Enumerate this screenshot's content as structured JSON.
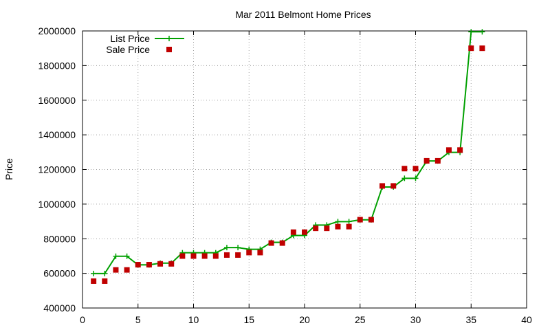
{
  "chart_data": {
    "type": "line",
    "title": "Mar 2011 Belmont Home Prices",
    "xlabel": "",
    "ylabel": "Price",
    "xlim": [
      0,
      40
    ],
    "ylim": [
      400000,
      2000000
    ],
    "x_ticks": [
      0,
      5,
      10,
      15,
      20,
      25,
      30,
      35,
      40
    ],
    "y_ticks": [
      400000,
      600000,
      800000,
      1000000,
      1200000,
      1400000,
      1600000,
      1800000,
      2000000
    ],
    "grid": true,
    "legend_position": "top-left",
    "series": [
      {
        "name": "List Price",
        "style": "line-with-plus-markers",
        "color": "#00a000",
        "x": [
          1,
          2,
          3,
          4,
          5,
          6,
          7,
          8,
          9,
          10,
          11,
          12,
          13,
          14,
          15,
          16,
          17,
          18,
          19,
          20,
          21,
          22,
          23,
          24,
          25,
          26,
          27,
          28,
          29,
          30,
          31,
          32,
          33,
          34,
          35,
          36
        ],
        "values": [
          599000,
          599000,
          699000,
          699000,
          649000,
          649000,
          659000,
          659000,
          719000,
          719000,
          719000,
          719000,
          749000,
          749000,
          739000,
          739000,
          779000,
          779000,
          819000,
          819000,
          879000,
          879000,
          899000,
          899000,
          909000,
          909000,
          1099000,
          1099000,
          1149000,
          1149000,
          1249000,
          1249000,
          1299000,
          1299000,
          1995000,
          1995000
        ]
      },
      {
        "name": "Sale Price",
        "style": "square-markers",
        "color": "#c00000",
        "x": [
          1,
          2,
          3,
          4,
          5,
          6,
          7,
          8,
          9,
          10,
          11,
          12,
          13,
          14,
          15,
          16,
          17,
          18,
          19,
          20,
          21,
          22,
          23,
          24,
          25,
          26,
          27,
          28,
          29,
          30,
          31,
          32,
          33,
          34,
          35,
          36
        ],
        "values": [
          555000,
          555000,
          620000,
          620000,
          650000,
          650000,
          655000,
          655000,
          700000,
          700000,
          700000,
          700000,
          706000,
          706000,
          720000,
          720000,
          775000,
          775000,
          838000,
          838000,
          860000,
          860000,
          870000,
          870000,
          910000,
          910000,
          1105000,
          1105000,
          1205000,
          1205000,
          1250000,
          1250000,
          1312000,
          1312000,
          1900000,
          1900000
        ]
      }
    ]
  }
}
